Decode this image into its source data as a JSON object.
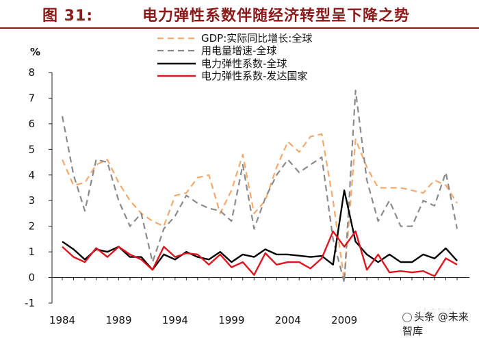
{
  "figure": {
    "number": "图 31:",
    "title": "电力弹性系数伴随经济转型呈下降之势"
  },
  "watermark": {
    "text": "头条 @未来智库",
    "ghost_text": "未来智库"
  },
  "chart_data": {
    "type": "line",
    "unit_label": "%",
    "ylim": [
      -1,
      8
    ],
    "yticks": [
      -1,
      0,
      1,
      2,
      3,
      4,
      5,
      6,
      7,
      8
    ],
    "xlim": [
      1984,
      2019
    ],
    "xticks": [
      1984,
      1989,
      1994,
      1999,
      2004,
      2009
    ],
    "grid": false,
    "legend_position": "top",
    "x": [
      1984,
      1985,
      1986,
      1987,
      1988,
      1989,
      1990,
      1991,
      1992,
      1993,
      1994,
      1995,
      1996,
      1997,
      1998,
      1999,
      2000,
      2001,
      2002,
      2003,
      2004,
      2005,
      2006,
      2007,
      2008,
      2009,
      2010,
      2011,
      2012,
      2013,
      2014,
      2015,
      2016,
      2017,
      2018,
      2019
    ],
    "series": [
      {
        "name": "GDP:实际同比增长:全球",
        "color": "#f4a96d",
        "style": "dashed",
        "values": [
          4.6,
          3.6,
          3.7,
          4.4,
          4.6,
          3.7,
          3.0,
          2.5,
          2.2,
          2.0,
          3.2,
          3.3,
          3.9,
          4.0,
          2.5,
          3.4,
          4.8,
          2.5,
          3.0,
          4.3,
          5.3,
          4.9,
          5.5,
          5.6,
          3.0,
          -0.1,
          5.4,
          4.3,
          3.5,
          3.5,
          3.5,
          3.4,
          3.3,
          3.8,
          3.6,
          2.9
        ]
      },
      {
        "name": "用电量增速-全球",
        "color": "#8a8a8a",
        "style": "dashed",
        "values": [
          6.3,
          4.0,
          2.6,
          4.6,
          4.5,
          3.0,
          2.0,
          2.5,
          0.6,
          1.9,
          2.4,
          3.2,
          2.9,
          2.7,
          2.6,
          2.2,
          4.4,
          1.9,
          3.1,
          4.0,
          4.6,
          4.1,
          4.4,
          4.7,
          1.5,
          -0.2,
          7.3,
          3.8,
          2.2,
          3.0,
          2.0,
          2.0,
          3.0,
          2.8,
          4.1,
          1.9
        ]
      },
      {
        "name": "电力弹性系数-全球",
        "color": "#000000",
        "style": "solid",
        "values": [
          1.4,
          1.1,
          0.7,
          1.1,
          1.0,
          1.2,
          0.8,
          0.8,
          0.3,
          0.9,
          0.7,
          1.0,
          0.8,
          0.7,
          1.0,
          0.6,
          0.9,
          0.8,
          1.1,
          0.9,
          0.9,
          0.85,
          0.8,
          0.84,
          0.5,
          3.4,
          1.4,
          0.9,
          0.6,
          0.9,
          0.6,
          0.6,
          0.9,
          0.74,
          1.14,
          0.65
        ]
      },
      {
        "name": "电力弹性系数-发达国家",
        "color": "#e0141e",
        "style": "solid",
        "values": [
          1.2,
          0.8,
          0.6,
          1.15,
          0.8,
          1.2,
          0.9,
          0.7,
          0.3,
          1.2,
          0.8,
          0.95,
          0.9,
          0.5,
          0.9,
          0.4,
          0.6,
          0.1,
          0.95,
          0.5,
          0.6,
          0.6,
          0.35,
          0.75,
          1.8,
          1.2,
          1.8,
          0.3,
          0.9,
          0.2,
          0.25,
          0.2,
          0.25,
          0.05,
          0.75,
          0.5
        ]
      }
    ]
  }
}
